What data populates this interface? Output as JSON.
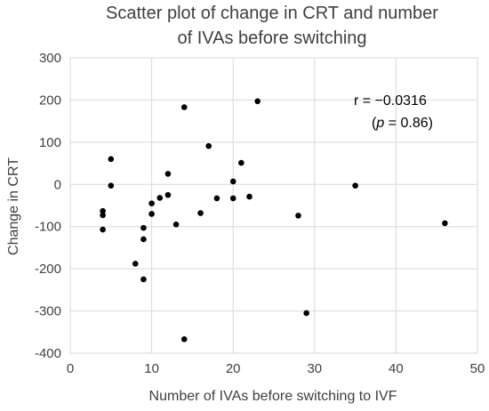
{
  "chart_data": {
    "type": "scatter",
    "title_lines": [
      "Scatter plot of change in CRT and number",
      "of IVAs before switching"
    ],
    "xlabel": "Number of IVAs before switching to IVF",
    "ylabel": "Change in CRT",
    "xlim": [
      0,
      50
    ],
    "ylim": [
      -400,
      300
    ],
    "x_ticks": [
      0,
      10,
      20,
      30,
      40,
      50
    ],
    "y_ticks": [
      -400,
      -300,
      -200,
      -100,
      0,
      100,
      200,
      300
    ],
    "x_tick_labels": [
      "0",
      "10",
      "20",
      "30",
      "40",
      "50"
    ],
    "y_tick_labels": [
      "-400",
      "-300",
      "-200",
      "-100",
      "0",
      "100",
      "200",
      "300"
    ],
    "grid": "vertical-and-horizontal",
    "annotation": {
      "line1": "r = −0.0316",
      "line2_prefix": "(",
      "line2_italic": "p",
      "line2_suffix": " = 0.86)"
    },
    "series": [
      {
        "color": "#000000",
        "points": [
          {
            "x": 4,
            "y": -63
          },
          {
            "x": 4,
            "y": -73
          },
          {
            "x": 4,
            "y": -107
          },
          {
            "x": 5,
            "y": 60
          },
          {
            "x": 5,
            "y": -3
          },
          {
            "x": 8,
            "y": -188
          },
          {
            "x": 9,
            "y": -103
          },
          {
            "x": 9,
            "y": -130
          },
          {
            "x": 9,
            "y": -225
          },
          {
            "x": 10,
            "y": -45
          },
          {
            "x": 10,
            "y": -70
          },
          {
            "x": 11,
            "y": -32
          },
          {
            "x": 12,
            "y": 25
          },
          {
            "x": 12,
            "y": -25
          },
          {
            "x": 13,
            "y": -95
          },
          {
            "x": 14,
            "y": 183
          },
          {
            "x": 14,
            "y": -367
          },
          {
            "x": 16,
            "y": -68
          },
          {
            "x": 17,
            "y": 91
          },
          {
            "x": 18,
            "y": -33
          },
          {
            "x": 20,
            "y": 7
          },
          {
            "x": 20,
            "y": -33
          },
          {
            "x": 21,
            "y": 51
          },
          {
            "x": 22,
            "y": -29
          },
          {
            "x": 23,
            "y": 197
          },
          {
            "x": 28,
            "y": -74
          },
          {
            "x": 29,
            "y": -305
          },
          {
            "x": 35,
            "y": -3
          },
          {
            "x": 46,
            "y": -92
          }
        ]
      }
    ]
  }
}
